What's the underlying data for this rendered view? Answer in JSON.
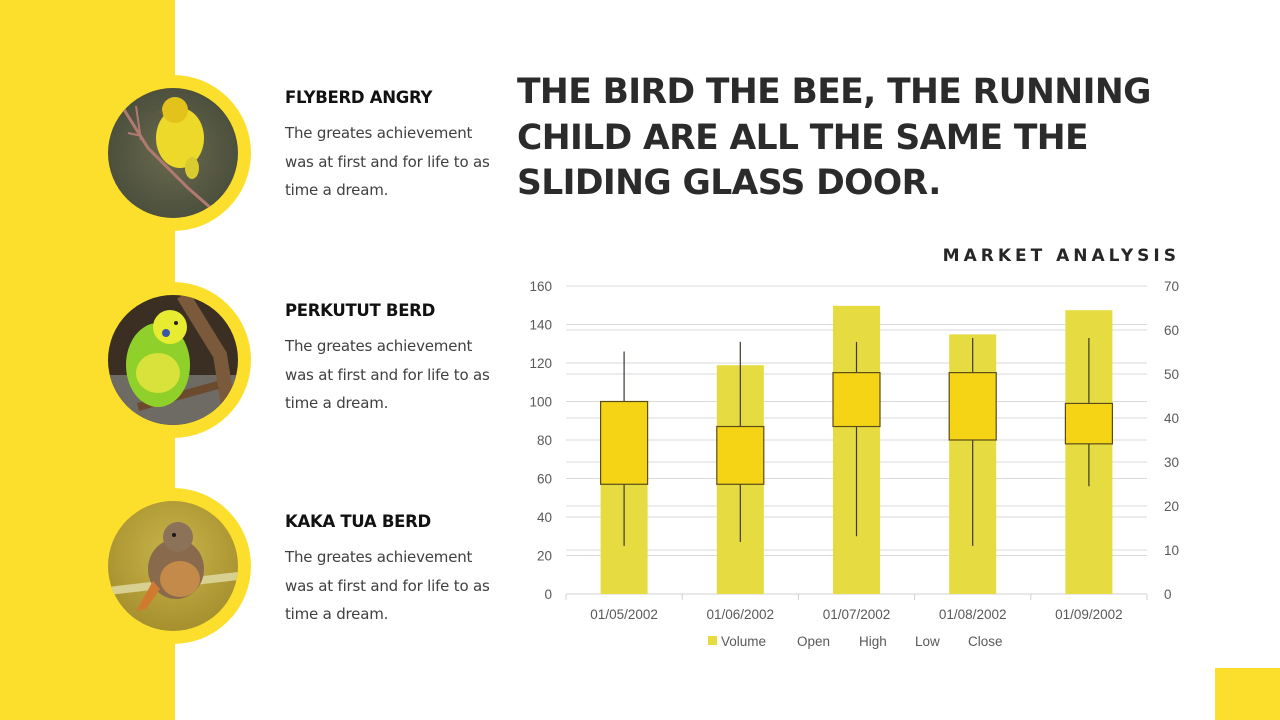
{
  "headline": "THE BIRD THE BEE, THE RUNNING CHILD ARE ALL THE SAME THE SLIDING GLASS DOOR.",
  "colors": {
    "accent": "#fcdf2c",
    "volume_bar": "#e6dc41",
    "candle_box": "#f5d416",
    "candle_border": "#5a4c16",
    "text_dark": "#2b2b2b",
    "grid": "#d9d9d9"
  },
  "birds": [
    {
      "name": "FLYBERD ANGRY",
      "description": "The greates  achievement was at first and for life to as time a dream.",
      "photo": "yellow-canary-on-branch"
    },
    {
      "name": "PERKUTUT BERD",
      "description": "The greates  achievement was at first and for life to as time a dream.",
      "photo": "green-budgerigar-on-branch"
    },
    {
      "name": "KAKA TUA BERD",
      "description": "The greates  achievement was at first and for life to as time a dream.",
      "photo": "brown-redstart-on-branch"
    }
  ],
  "chart_data": {
    "type": "stock-volume-ohlc",
    "title": "MARKET ANALYSIS",
    "categories": [
      "01/05/2002",
      "01/06/2002",
      "01/07/2002",
      "01/08/2002",
      "01/09/2002"
    ],
    "legend": [
      "Volume",
      "Open",
      "High",
      "Low",
      "Close"
    ],
    "legend_position": "bottom",
    "grid": true,
    "left_axis": {
      "label": "",
      "ylim": [
        0,
        160
      ],
      "ticks": [
        0,
        20,
        40,
        60,
        80,
        100,
        120,
        140,
        160
      ]
    },
    "right_axis": {
      "label": "",
      "ylim": [
        0,
        70
      ],
      "ticks": [
        0,
        10,
        20,
        30,
        40,
        50,
        60,
        70
      ]
    },
    "series": [
      {
        "name": "Volume",
        "axis": "right",
        "values": [
          35,
          52,
          65.5,
          59,
          64.5
        ]
      },
      {
        "name": "Open",
        "axis": "left",
        "values": [
          57,
          57,
          87,
          80,
          78
        ]
      },
      {
        "name": "High",
        "axis": "left",
        "values": [
          126,
          131,
          131,
          133,
          133
        ]
      },
      {
        "name": "Low",
        "axis": "left",
        "values": [
          25,
          27,
          30,
          25,
          56
        ]
      },
      {
        "name": "Close",
        "axis": "left",
        "values": [
          100,
          87,
          115,
          115,
          99
        ]
      }
    ]
  }
}
